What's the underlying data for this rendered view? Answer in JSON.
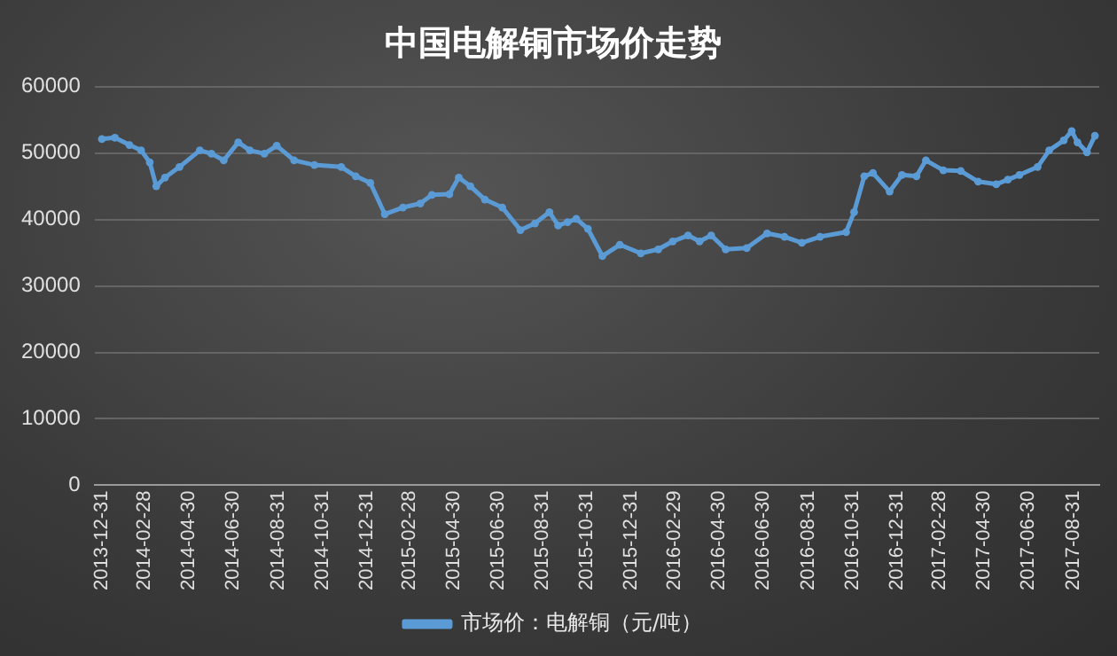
{
  "chart_data": {
    "type": "line",
    "title": "中国电解铜市场价走势",
    "x": [
      "2013-12-31",
      "2014-01-18",
      "2014-02-07",
      "2014-02-23",
      "2014-03-07",
      "2014-03-16",
      "2014-03-28",
      "2014-04-17",
      "2014-05-15",
      "2014-05-31",
      "2014-06-17",
      "2014-07-07",
      "2014-07-23",
      "2014-08-12",
      "2014-08-29",
      "2014-09-22",
      "2014-10-20",
      "2014-11-26",
      "2014-12-16",
      "2015-01-05",
      "2015-01-25",
      "2015-02-19",
      "2015-03-15",
      "2015-03-31",
      "2015-04-24",
      "2015-05-07",
      "2015-05-23",
      "2015-06-12",
      "2015-07-06",
      "2015-07-31",
      "2015-08-20",
      "2015-09-09",
      "2015-09-21",
      "2015-10-04",
      "2015-10-16",
      "2015-11-01",
      "2015-11-21",
      "2015-12-15",
      "2016-01-13",
      "2016-02-06",
      "2016-02-26",
      "2016-03-18",
      "2016-04-03",
      "2016-04-19",
      "2016-05-09",
      "2016-06-07",
      "2016-07-05",
      "2016-07-29",
      "2016-08-22",
      "2016-09-16",
      "2016-10-22",
      "2016-11-02",
      "2016-11-16",
      "2016-11-28",
      "2016-12-21",
      "2017-01-07",
      "2017-01-27",
      "2017-02-09",
      "2017-03-05",
      "2017-03-29",
      "2017-04-22",
      "2017-05-17",
      "2017-06-02",
      "2017-06-18",
      "2017-07-13",
      "2017-07-29",
      "2017-08-18",
      "2017-08-29",
      "2017-09-06",
      "2017-09-19",
      "2017-09-30"
    ],
    "series": [
      {
        "name": "市场价：电解铜（元/吨）",
        "color": "#5b9bd5",
        "values": [
          52100,
          52300,
          51200,
          50400,
          48600,
          45000,
          46300,
          47900,
          50400,
          49900,
          48900,
          51600,
          50400,
          49900,
          51100,
          48900,
          48200,
          47900,
          46500,
          45500,
          40800,
          41800,
          42400,
          43700,
          43800,
          46300,
          45000,
          43000,
          41800,
          38400,
          39400,
          41100,
          39100,
          39600,
          40100,
          38600,
          34500,
          36200,
          34900,
          35500,
          36700,
          37600,
          36700,
          37600,
          35500,
          35700,
          37900,
          37400,
          36500,
          37400,
          38100,
          41100,
          46500,
          47000,
          44200,
          46700,
          46500,
          48900,
          47400,
          47300,
          45700,
          45300,
          46000,
          46700,
          47900,
          50400,
          51900,
          53300,
          51600,
          50100,
          52600
        ]
      }
    ],
    "xlim": [
      "2013-12-21",
      "2017-10-06"
    ],
    "xticks": [
      "2013-12-31",
      "2014-02-28",
      "2014-04-30",
      "2014-06-30",
      "2014-08-31",
      "2014-10-31",
      "2014-12-31",
      "2015-02-28",
      "2015-04-30",
      "2015-06-30",
      "2015-08-31",
      "2015-10-31",
      "2015-12-31",
      "2016-02-29",
      "2016-04-30",
      "2016-06-30",
      "2016-08-31",
      "2016-10-31",
      "2016-12-31",
      "2017-02-28",
      "2017-04-30",
      "2017-06-30",
      "2017-08-31"
    ],
    "ylim": [
      0,
      60000
    ],
    "yticks": [
      0,
      10000,
      20000,
      30000,
      40000,
      50000,
      60000
    ],
    "grid": "y",
    "legend": "bottom",
    "marker": "circle",
    "line_style": "solid"
  }
}
